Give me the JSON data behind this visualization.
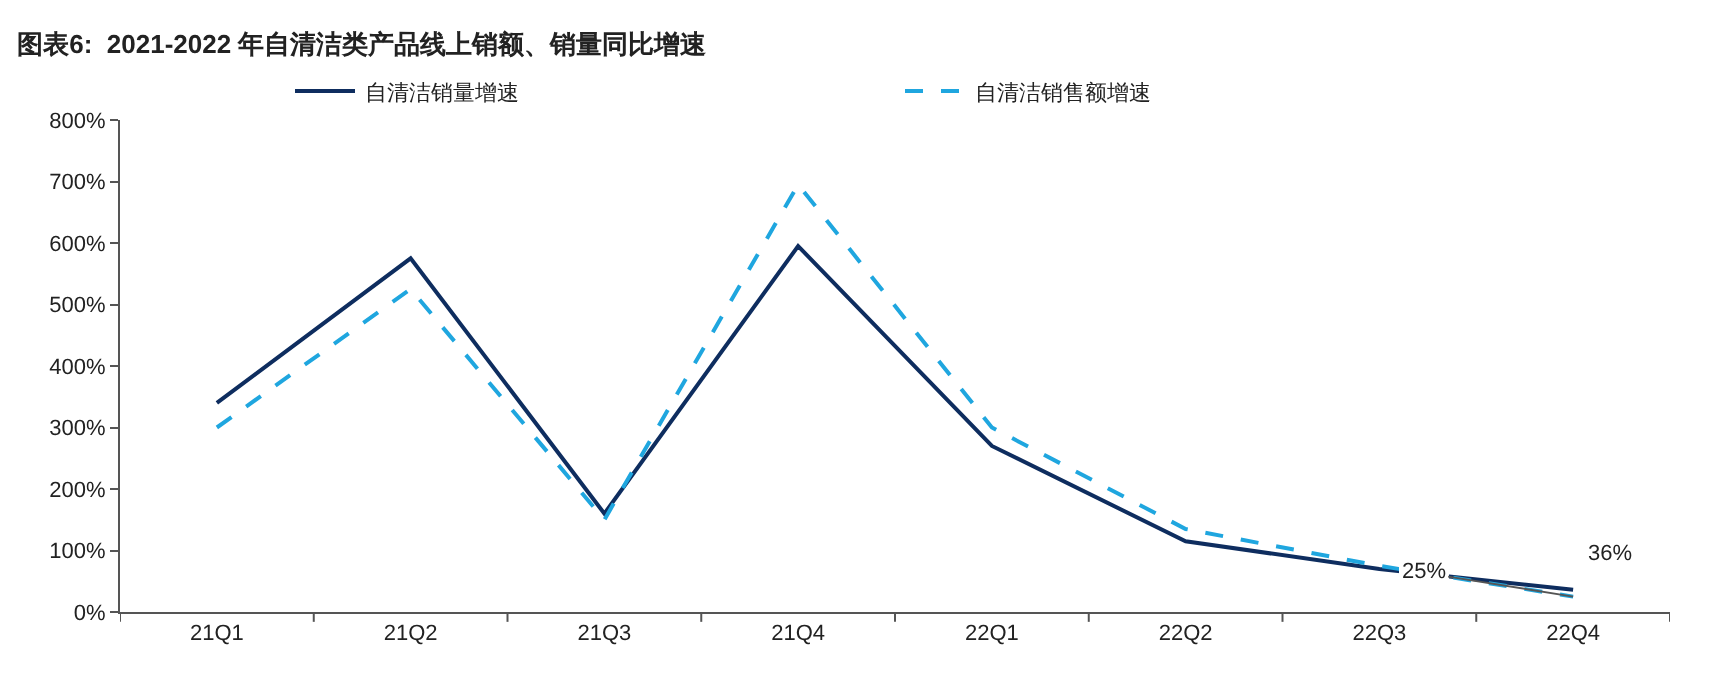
{
  "chart_data": {
    "type": "line",
    "title": "图表6:  2021-2022 年自清洁类产品线上销额、销量同比增速",
    "categories": [
      "21Q1",
      "21Q2",
      "21Q3",
      "21Q4",
      "22Q1",
      "22Q2",
      "22Q3",
      "22Q4"
    ],
    "series": [
      {
        "name": "自清洁销量增速",
        "color": "#0e2d5f",
        "line_style": "solid",
        "values": [
          340,
          575,
          160,
          595,
          270,
          115,
          70,
          36
        ]
      },
      {
        "name": "自清洁销售额增速",
        "color": "#1fa6df",
        "line_style": "dashed",
        "values": [
          300,
          525,
          150,
          695,
          300,
          135,
          75,
          25
        ]
      }
    ],
    "ylim": [
      0,
      800
    ],
    "yticks": [
      {
        "value": 0,
        "label": "0%"
      },
      {
        "value": 100,
        "label": "100%"
      },
      {
        "value": 200,
        "label": "200%"
      },
      {
        "value": 300,
        "label": "300%"
      },
      {
        "value": 400,
        "label": "400%"
      },
      {
        "value": 500,
        "label": "500%"
      },
      {
        "value": 600,
        "label": "600%"
      },
      {
        "value": 700,
        "label": "700%"
      },
      {
        "value": 800,
        "label": "800%"
      }
    ],
    "annotations": [
      {
        "text": "36%",
        "x": "22Q4",
        "y": 36
      },
      {
        "text": "25%",
        "x": "22Q4",
        "y": 25
      }
    ],
    "grid": false,
    "legend": "top",
    "marker": "none"
  }
}
